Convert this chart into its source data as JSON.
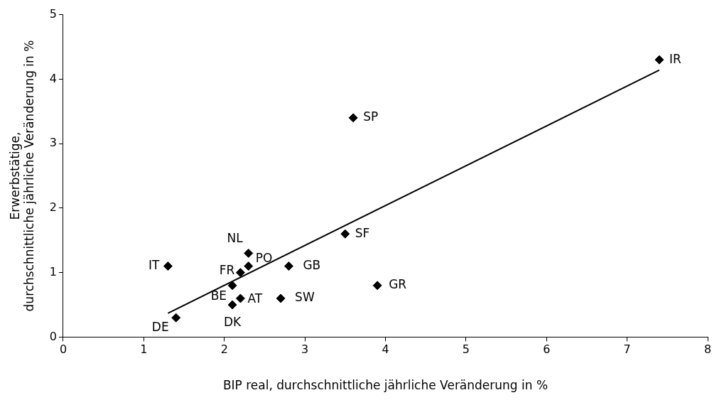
{
  "chart_data": {
    "type": "scatter",
    "xlabel": "BIP real, durchschnittliche jährliche Veränderung in %",
    "ylabel": "Erwerbstätige,\ndurchschnittliche jährliche Veränderung in %",
    "xlim": [
      0,
      8
    ],
    "xticks": [
      0,
      1,
      2,
      3,
      4,
      5,
      6,
      7,
      8
    ],
    "ylim": [
      0,
      5
    ],
    "yticks": [
      0,
      1,
      2,
      3,
      4,
      5
    ],
    "grid": false,
    "legend": false,
    "series": [
      {
        "type": "scatter",
        "color": "#000000",
        "marker": "diamond",
        "x": [
          7.4,
          3.6,
          3.5,
          3.9,
          2.8,
          2.7,
          2.3,
          2.3,
          2.2,
          2.1,
          2.2,
          2.1,
          1.3,
          1.4
        ],
        "values": [
          4.3,
          3.4,
          1.6,
          0.8,
          1.1,
          0.6,
          1.3,
          1.1,
          1.0,
          0.8,
          0.6,
          0.5,
          1.1,
          0.3
        ]
      },
      {
        "type": "line",
        "color": "#000000",
        "marker": "none",
        "line_style": "solid",
        "x": [
          1.3,
          7.4
        ],
        "values": [
          0.37,
          4.14
        ]
      }
    ],
    "annotations": [
      {
        "text": "IR",
        "x": 7.4,
        "y": 4.3
      },
      {
        "text": "SP",
        "x": 3.6,
        "y": 3.4
      },
      {
        "text": "SF",
        "x": 3.5,
        "y": 1.6
      },
      {
        "text": "GR",
        "x": 3.9,
        "y": 0.8
      },
      {
        "text": "GB",
        "x": 2.8,
        "y": 1.1
      },
      {
        "text": "SW",
        "x": 2.7,
        "y": 0.6
      },
      {
        "text": "NL",
        "x": 2.3,
        "y": 1.3
      },
      {
        "text": "PO",
        "x": 2.3,
        "y": 1.1
      },
      {
        "text": "FR",
        "x": 2.2,
        "y": 1.0
      },
      {
        "text": "BE",
        "x": 2.1,
        "y": 0.8
      },
      {
        "text": "AT",
        "x": 2.2,
        "y": 0.6
      },
      {
        "text": "DK",
        "x": 2.1,
        "y": 0.5
      },
      {
        "text": "IT",
        "x": 1.3,
        "y": 1.1
      },
      {
        "text": "DE",
        "x": 1.4,
        "y": 0.3
      }
    ]
  }
}
